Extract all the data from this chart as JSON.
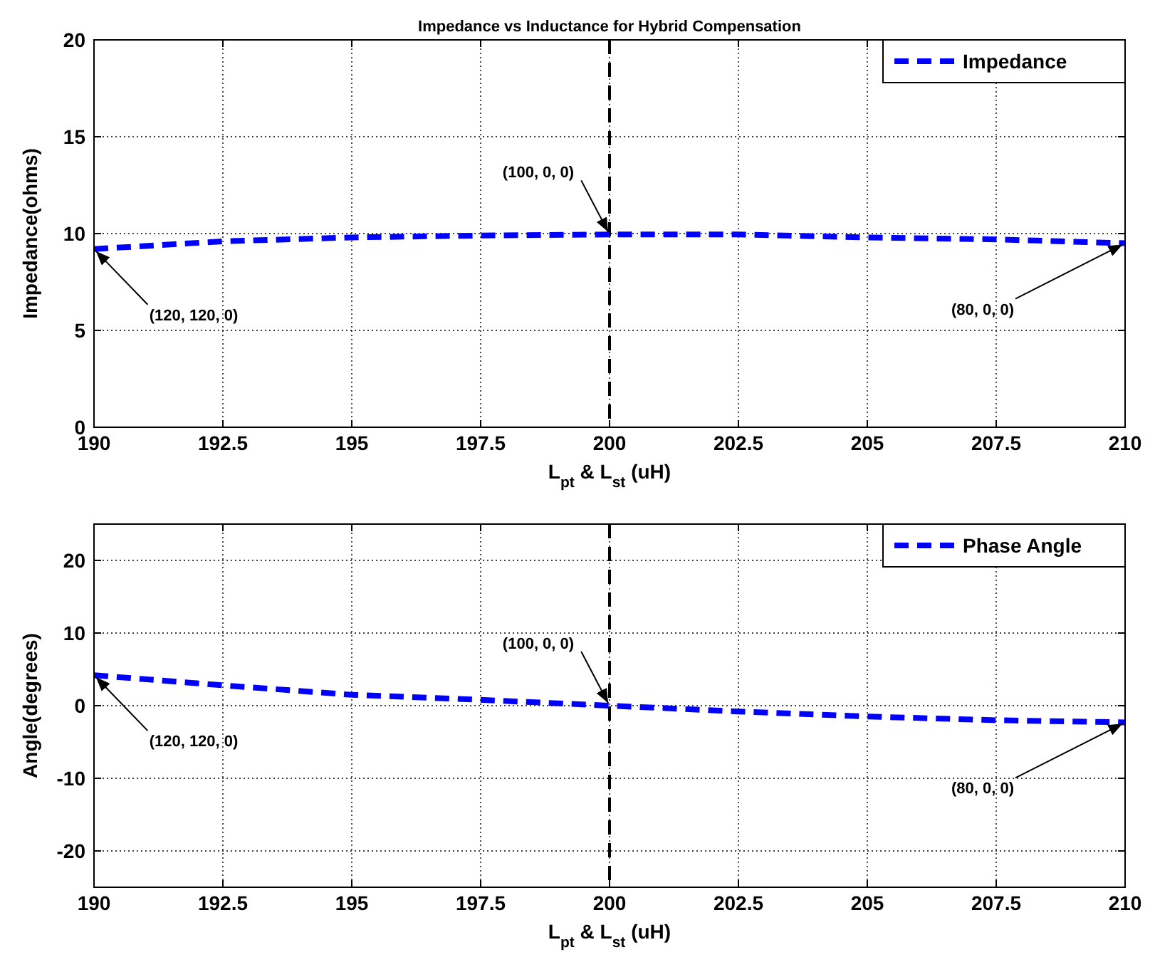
{
  "chart_data": [
    {
      "type": "line",
      "title": "Impedance vs Inductance for Hybrid Compensation",
      "xlabel": "L$_{pt}$ & L$_{st}$ (uH)",
      "ylabel": "Impedance(ohms)",
      "x": [
        190,
        192.5,
        195,
        197.5,
        200,
        202.5,
        205,
        207.5,
        210
      ],
      "series": [
        {
          "name": "Impedance",
          "color": "#0000ff",
          "values": [
            9.2,
            9.6,
            9.8,
            9.9,
            9.95,
            9.95,
            9.8,
            9.7,
            9.5
          ]
        }
      ],
      "xlim": [
        190,
        210
      ],
      "xticks": [
        190,
        192.5,
        195,
        197.5,
        200,
        202.5,
        205,
        207.5,
        210
      ],
      "ylim": [
        0,
        20
      ],
      "yticks": [
        0,
        5,
        10,
        15,
        20
      ],
      "ref_lines": [
        {
          "axis": "x",
          "value": 200,
          "color": "#000000",
          "line_style": "dashed"
        }
      ],
      "annotations": [
        {
          "text": "(100, 0, 0)",
          "x": 200,
          "y": 9.95
        },
        {
          "text": "(120, 120, 0)",
          "x": 190,
          "y": 9.2
        },
        {
          "text": "(80, 0, 0)",
          "x": 210,
          "y": 9.5
        }
      ],
      "grid": true,
      "legend": "top right",
      "marker": "none",
      "line_style": "dashed"
    },
    {
      "type": "line",
      "xlabel": "L$_{pt}$ & L$_{st}$ (uH)",
      "ylabel": "Angle(degrees)",
      "x": [
        190,
        192.5,
        195,
        197.5,
        200,
        202.5,
        205,
        207.5,
        210
      ],
      "series": [
        {
          "name": "Phase Angle",
          "color": "#0000ff",
          "values": [
            4.2,
            2.8,
            1.5,
            0.8,
            0,
            -0.8,
            -1.5,
            -2,
            -2.3
          ]
        }
      ],
      "xlim": [
        190,
        210
      ],
      "xticks": [
        190,
        192.5,
        195,
        197.5,
        200,
        202.5,
        205,
        207.5,
        210
      ],
      "ylim": [
        -25,
        25
      ],
      "yticks": [
        -20,
        -10,
        0,
        10,
        20
      ],
      "ref_lines": [
        {
          "axis": "x",
          "value": 200,
          "color": "#000000",
          "line_style": "dashed"
        }
      ],
      "annotations": [
        {
          "text": "(100, 0, 0)",
          "x": 200,
          "y": 0
        },
        {
          "text": "(120, 120, 0)",
          "x": 190,
          "y": 4.2
        },
        {
          "text": "(80, 0, 0)",
          "x": 210,
          "y": -2.3
        }
      ],
      "grid": true,
      "legend": "top right",
      "marker": "none",
      "line_style": "dashed"
    }
  ]
}
